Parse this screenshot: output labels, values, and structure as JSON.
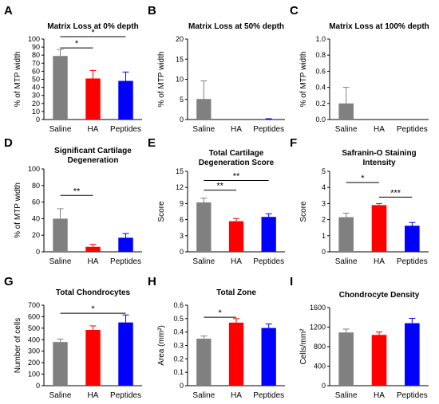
{
  "colors": {
    "Saline": "#808080",
    "HA": "#ff0000",
    "Peptides": "#0000ff",
    "err_Saline": "#808080",
    "err_HA": "#ff0000",
    "err_Peptides": "#0000ff"
  },
  "chart_data": [
    {
      "type": "bar",
      "panel": "A",
      "title": "Matrix Loss at 0% depth",
      "ylabel": "% of MTP width",
      "ylim": [
        0,
        100
      ],
      "yticks": [
        0,
        10,
        20,
        30,
        40,
        50,
        60,
        70,
        80,
        90,
        100
      ],
      "categories": [
        "Saline",
        "HA",
        "Peptides"
      ],
      "values": [
        79,
        51,
        48
      ],
      "errors": [
        8,
        10,
        11
      ],
      "significance": [
        {
          "from": 0,
          "to": 2,
          "label": "*",
          "y": 103
        },
        {
          "from": 0,
          "to": 1,
          "label": "*",
          "y": 89
        }
      ]
    },
    {
      "type": "bar",
      "panel": "B",
      "title": "Matrix Loss at 50% depth",
      "ylabel": "% of MTP width",
      "ylim": [
        0,
        20
      ],
      "yticks": [
        0,
        5,
        10,
        15,
        20
      ],
      "categories": [
        "Saline",
        "HA",
        "Peptides"
      ],
      "values": [
        5.1,
        0,
        0.1
      ],
      "errors": [
        4.5,
        0,
        0.1
      ],
      "significance": []
    },
    {
      "type": "bar",
      "panel": "C",
      "title": "Matrix Loss at 100% depth",
      "ylabel": "% of MTP width",
      "ylim": [
        0,
        1
      ],
      "yticks": [
        "0.0",
        "0.2",
        "0.4",
        "0.6",
        "0.8",
        "1.0"
      ],
      "categories": [
        "Saline",
        "HA",
        "Peptides"
      ],
      "values": [
        0.2,
        0,
        0
      ],
      "errors": [
        0.2,
        0,
        0
      ],
      "significance": []
    },
    {
      "type": "bar",
      "panel": "D",
      "title_lines": [
        "Significant Cartilage",
        "Degeneration"
      ],
      "ylabel": "% of MTP width",
      "ylim": [
        0,
        100
      ],
      "yticks": [
        0,
        20,
        40,
        60,
        80,
        100
      ],
      "categories": [
        "Saline",
        "HA",
        "Peptides"
      ],
      "values": [
        40,
        6,
        17
      ],
      "errors": [
        12,
        3,
        5
      ],
      "significance": [
        {
          "from": 0,
          "to": 1,
          "label": "**",
          "y": 68
        }
      ]
    },
    {
      "type": "bar",
      "panel": "E",
      "title_lines": [
        "Total Cartilage",
        "Degeneration Score"
      ],
      "ylabel": "Score",
      "ylim": [
        0,
        15
      ],
      "yticks": [
        0,
        3,
        6,
        9,
        12,
        15
      ],
      "categories": [
        "Saline",
        "HA",
        "Peptides"
      ],
      "values": [
        9.2,
        5.7,
        6.5
      ],
      "errors": [
        0.8,
        0.5,
        0.6
      ],
      "significance": [
        {
          "from": 0,
          "to": 2,
          "label": "**",
          "y": 13.3
        },
        {
          "from": 0,
          "to": 1,
          "label": "**",
          "y": 11.5
        }
      ]
    },
    {
      "type": "bar",
      "panel": "F",
      "title_lines": [
        "Safranin-O Staining",
        "Intensity"
      ],
      "ylabel": "Score",
      "ylim": [
        0,
        5
      ],
      "yticks": [
        0,
        1,
        2,
        3,
        4,
        5
      ],
      "categories": [
        "Saline",
        "HA",
        "Peptides"
      ],
      "values": [
        2.15,
        2.9,
        1.62
      ],
      "errors": [
        0.25,
        0.1,
        0.2
      ],
      "significance": [
        {
          "from": 0,
          "to": 1,
          "label": "*",
          "y": 4.3
        },
        {
          "from": 1,
          "to": 2,
          "label": "***",
          "y": 3.4
        }
      ]
    },
    {
      "type": "bar",
      "panel": "G",
      "title": "Total Chondrocytes",
      "ylabel": "Number of cells",
      "ylim": [
        0,
        700
      ],
      "yticks": [
        0,
        100,
        200,
        300,
        400,
        500,
        600,
        700
      ],
      "categories": [
        "Saline",
        "HA",
        "Peptides"
      ],
      "values": [
        380,
        485,
        550
      ],
      "errors": [
        25,
        35,
        65
      ],
      "significance": [
        {
          "from": 0,
          "to": 2,
          "label": "*",
          "y": 630
        }
      ]
    },
    {
      "type": "bar",
      "panel": "H",
      "title": "Total Zone",
      "ylabel": "Area (mm²)",
      "ylim": [
        0,
        0.6
      ],
      "yticks": [
        "0",
        "0.1",
        "0.2",
        "0.3",
        "0.4",
        "0.5",
        "0.6"
      ],
      "categories": [
        "Saline",
        "HA",
        "Peptides"
      ],
      "values": [
        0.35,
        0.47,
        0.43
      ],
      "errors": [
        0.02,
        0.03,
        0.03
      ],
      "significance": [
        {
          "from": 0,
          "to": 1,
          "label": "*",
          "y": 0.51
        }
      ]
    },
    {
      "type": "bar",
      "panel": "I",
      "title": "Chondrocyte Density",
      "ylabel": "Cells/mm²",
      "ylim": [
        0,
        1600
      ],
      "yticks": [
        0,
        400,
        800,
        1200,
        1600
      ],
      "categories": [
        "Saline",
        "HA",
        "Peptides"
      ],
      "values": [
        1090,
        1040,
        1280
      ],
      "errors": [
        70,
        60,
        100
      ],
      "significance": []
    }
  ]
}
